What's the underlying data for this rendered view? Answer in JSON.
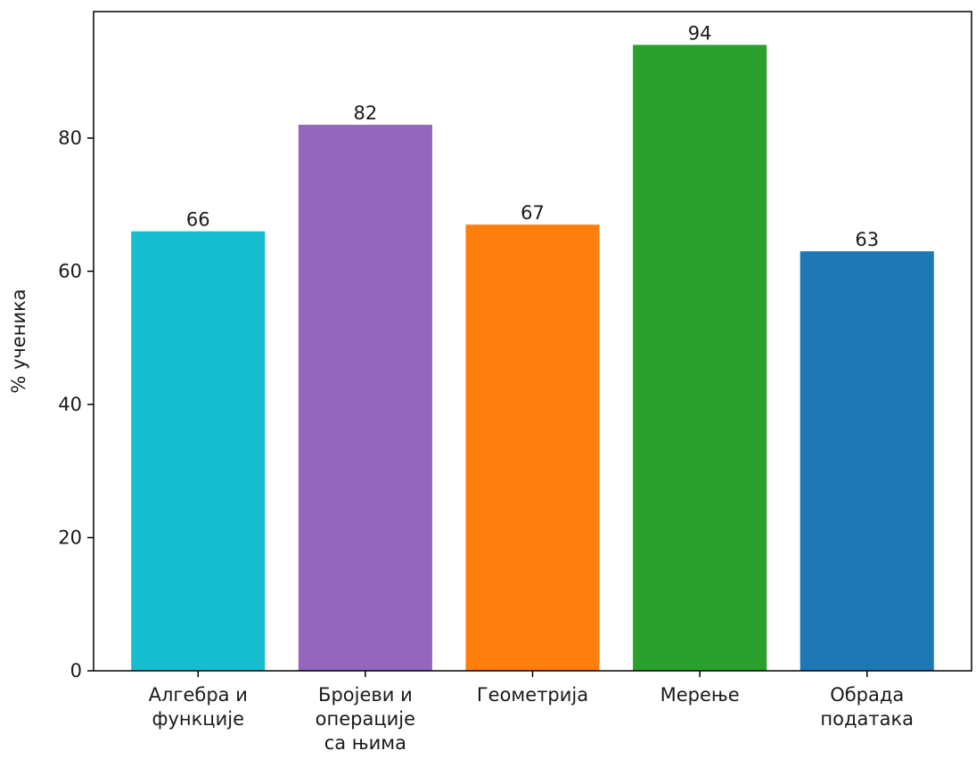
{
  "chart_data": {
    "type": "bar",
    "title": "",
    "xlabel": "",
    "ylabel": "% ученика",
    "ylim": [
      0,
      99
    ],
    "yticks": [
      0,
      20,
      40,
      60,
      80
    ],
    "grid": false,
    "categories": [
      [
        "Алгебра и",
        "функције"
      ],
      [
        "Бројеви и",
        "операције",
        "са њима"
      ],
      [
        "Геометрија"
      ],
      [
        "Мерење"
      ],
      [
        "Обрада",
        "података"
      ]
    ],
    "values": [
      66,
      82,
      67,
      94,
      63
    ],
    "value_labels": [
      "66",
      "82",
      "67",
      "94",
      "63"
    ],
    "colors": [
      "#17becf",
      "#9467bd",
      "#ff7f0e",
      "#2ca02c",
      "#1f77b4"
    ]
  }
}
